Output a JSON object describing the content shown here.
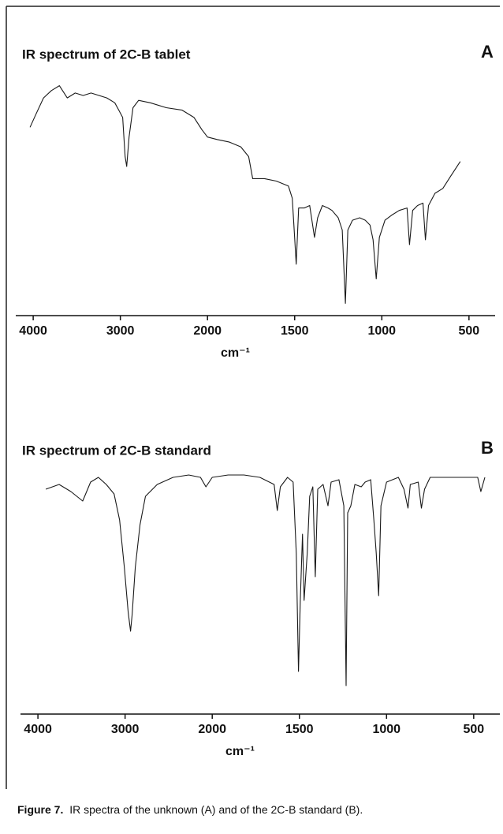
{
  "chart_data": [
    {
      "type": "line",
      "title": "IR spectrum of 2C-B tablet",
      "panel_label": "A",
      "xlabel": "cm⁻¹",
      "xlim": [
        4200,
        350
      ],
      "x_scale": {
        "break": 2000,
        "ratio": 2
      },
      "xticks": [
        4000,
        3000,
        2000,
        1500,
        1000,
        500
      ],
      "ylim": [
        0,
        100
      ],
      "color": "#1a1a1a",
      "x": [
        4036,
        3973,
        3882,
        3791,
        3700,
        3609,
        3518,
        3427,
        3336,
        3245,
        3155,
        3064,
        3018,
        2973,
        2945,
        2927,
        2900,
        2855,
        2791,
        2655,
        2473,
        2291,
        2155,
        2064,
        2000,
        1945,
        1877,
        1809,
        1764,
        1741,
        1673,
        1605,
        1536,
        1514,
        1500,
        1491,
        1477,
        1445,
        1414,
        1386,
        1368,
        1341,
        1309,
        1286,
        1250,
        1227,
        1209,
        1195,
        1168,
        1127,
        1095,
        1068,
        1050,
        1032,
        1014,
        982,
        945,
        900,
        855,
        841,
        823,
        795,
        764,
        750,
        732,
        695,
        650,
        605,
        550
      ],
      "values": [
        77,
        82,
        89,
        92,
        94,
        89,
        91,
        90,
        91,
        90,
        89,
        87,
        84,
        81,
        65,
        61,
        73,
        85,
        88,
        87,
        85,
        84,
        81,
        76,
        73,
        72,
        71,
        69,
        65,
        56,
        56,
        55,
        53,
        48,
        32,
        21,
        44,
        44,
        45,
        32,
        40,
        45,
        44,
        43,
        40,
        35,
        5,
        35,
        39,
        40,
        39,
        37,
        31,
        15,
        32,
        39,
        41,
        43,
        44,
        29,
        43,
        45,
        46,
        31,
        45,
        50,
        52,
        57,
        63
      ]
    },
    {
      "type": "line",
      "title": "IR spectrum of 2C-B standard",
      "panel_label": "B",
      "xlabel": "cm⁻¹",
      "xlim": [
        4200,
        350
      ],
      "x_scale": {
        "break": 2000,
        "ratio": 2
      },
      "xticks": [
        4000,
        3000,
        2000,
        1500,
        1000,
        500
      ],
      "ylim": [
        0,
        100
      ],
      "color": "#1a1a1a",
      "x": [
        3910,
        3757,
        3622,
        3486,
        3396,
        3306,
        3216,
        3126,
        3063,
        3009,
        2964,
        2937,
        2919,
        2883,
        2829,
        2766,
        2631,
        2450,
        2270,
        2135,
        2072,
        2000,
        1909,
        1818,
        1727,
        1645,
        1627,
        1609,
        1568,
        1536,
        1518,
        1505,
        1495,
        1482,
        1473,
        1455,
        1441,
        1423,
        1409,
        1395,
        1364,
        1336,
        1318,
        1273,
        1245,
        1232,
        1223,
        1205,
        1182,
        1145,
        1123,
        1091,
        1073,
        1059,
        1045,
        1032,
        1000,
        932,
        900,
        877,
        864,
        818,
        800,
        782,
        750,
        682,
        591,
        477,
        459,
        436
      ],
      "values": [
        90,
        92,
        89,
        85,
        93,
        95,
        92,
        88,
        77,
        57,
        38,
        30,
        37,
        57,
        75,
        87,
        92,
        95,
        96,
        95,
        91,
        95,
        96,
        96,
        95,
        92,
        81,
        91,
        95,
        93,
        63,
        13,
        43,
        71,
        43,
        63,
        87,
        91,
        53,
        90,
        92,
        83,
        93,
        94,
        83,
        7,
        80,
        83,
        92,
        91,
        93,
        94,
        77,
        63,
        45,
        83,
        93,
        95,
        90,
        82,
        92,
        93,
        82,
        90,
        95,
        95,
        95,
        95,
        89,
        95
      ]
    }
  ],
  "caption_label": "Figure 7.",
  "caption": "IR spectra of the unknown (A) and of the 2C-B standard (B)."
}
